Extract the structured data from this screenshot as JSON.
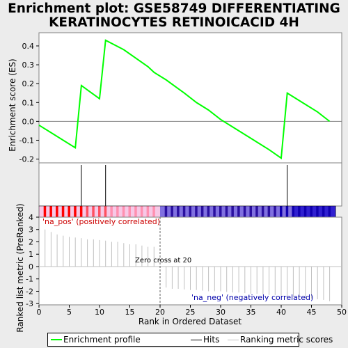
{
  "title_line1": "Enrichment plot: GSE58749 DIFFERENTIATING",
  "title_line2": "KERATINOCYTES RETINOICACID 4H",
  "chart_data": {
    "type": "line",
    "es_panel": {
      "ylabel": "Enrichment score (ES)",
      "ylim": [
        -0.22,
        0.47
      ],
      "yticks": [
        "-0.2",
        "-0.1",
        "0.0",
        "0.1",
        "0.2",
        "0.3",
        "0.4"
      ],
      "yticks_values": [
        -0.2,
        -0.1,
        0.0,
        0.1,
        0.2,
        0.3,
        0.4
      ],
      "series": [
        {
          "name": "Enrichment profile",
          "color": "#00ff00",
          "x": [
            0,
            2,
            4,
            6,
            7,
            10,
            11,
            14,
            18,
            19,
            21,
            24,
            26,
            28,
            30,
            32,
            35,
            38,
            40,
            41,
            44,
            46,
            48
          ],
          "y": [
            -0.02,
            -0.06,
            -0.1,
            -0.14,
            0.19,
            0.12,
            0.43,
            0.38,
            0.29,
            0.26,
            0.22,
            0.15,
            0.1,
            0.06,
            0.01,
            -0.03,
            -0.09,
            -0.15,
            -0.195,
            0.15,
            0.09,
            0.05,
            0.0
          ]
        }
      ]
    },
    "hits": {
      "name": "Hits",
      "color": "#000000",
      "x": [
        7,
        11,
        41
      ]
    },
    "ranking_panel": {
      "ylabel": "Ranked list metric (PreRanked)",
      "xlabel": "Rank in Ordered Dataset",
      "ylim": [
        -3.1,
        4
      ],
      "yticks": [
        "-3",
        "-2",
        "-1",
        "0",
        "1",
        "2",
        "3",
        "4"
      ],
      "yticks_values": [
        -3,
        -2,
        -1,
        0,
        1,
        2,
        3,
        4
      ],
      "xlim": [
        0,
        50
      ],
      "xticks": [
        "0",
        "5",
        "10",
        "15",
        "20",
        "25",
        "30",
        "35",
        "40",
        "45",
        "50"
      ],
      "xticks_values": [
        0,
        5,
        10,
        15,
        20,
        25,
        30,
        35,
        40,
        45,
        50
      ],
      "series_name": "Ranking metric scores",
      "color": "#c0c0c0",
      "x": [
        1,
        2,
        3,
        4,
        5,
        6,
        7,
        8,
        9,
        10,
        11,
        12,
        13,
        14,
        15,
        16,
        17,
        18,
        19,
        21,
        22,
        23,
        24,
        25,
        26,
        27,
        28,
        29,
        30,
        31,
        32,
        33,
        34,
        35,
        36,
        37,
        38,
        39,
        40,
        41,
        42,
        43,
        44,
        45,
        46,
        47,
        48
      ],
      "values": [
        3.0,
        2.8,
        2.6,
        2.5,
        2.4,
        2.35,
        2.3,
        2.2,
        2.2,
        2.15,
        2.1,
        2.0,
        2.0,
        1.9,
        1.8,
        1.8,
        1.7,
        1.6,
        1.6,
        -1.7,
        -1.8,
        -1.8,
        -1.85,
        -1.9,
        -1.9,
        -1.95,
        -2.0,
        -2.0,
        -2.0,
        -2.05,
        -2.1,
        -2.1,
        -2.15,
        -2.2,
        -2.2,
        -2.25,
        -2.3,
        -2.3,
        -2.35,
        -2.4,
        -2.45,
        -2.5,
        -2.55,
        -2.6,
        -2.65,
        -2.7,
        -2.8
      ],
      "zero_cross": 20,
      "zero_cross_label": "Zero cross at 20",
      "pos_label": "'na_pos' (positively correlated)",
      "neg_label": "'na_neg' (negatively correlated)",
      "pos_color": "#cc0000",
      "neg_color": "#0000aa"
    },
    "legend": [
      {
        "name": "Enrichment profile",
        "color": "#00ff00"
      },
      {
        "name": "Hits",
        "color": "#000000"
      },
      {
        "name": "Ranking metric scores",
        "color": "#c0c0c0"
      }
    ]
  }
}
